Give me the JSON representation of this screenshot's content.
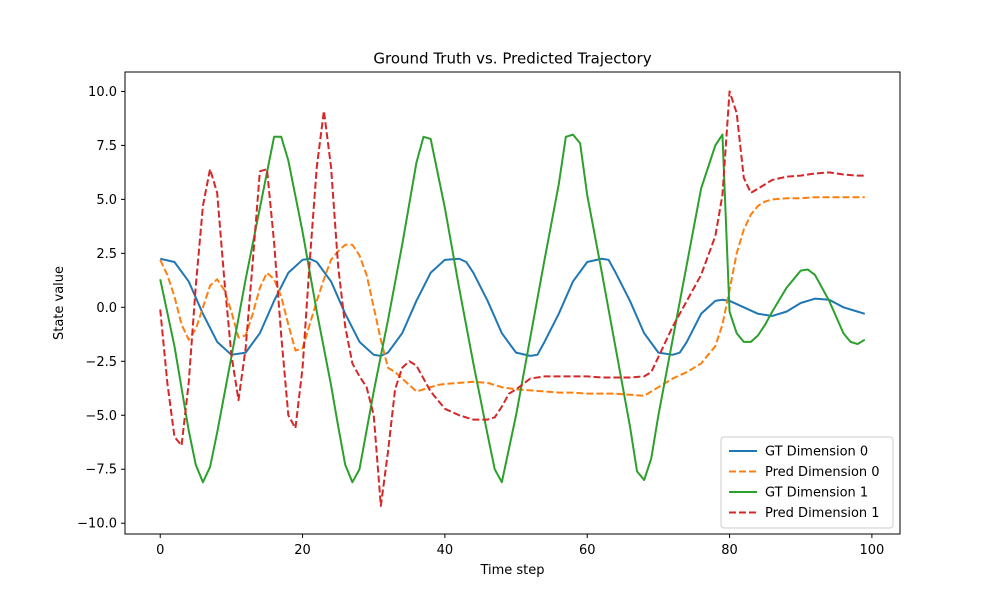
{
  "chart_data": {
    "type": "line",
    "title": "Ground Truth vs. Predicted Trajectory",
    "xlabel": "Time step",
    "ylabel": "State value",
    "xlim": [
      -4.95,
      103.95
    ],
    "ylim": [
      -10.5,
      10.9
    ],
    "xticks": [
      0,
      20,
      40,
      60,
      80,
      100
    ],
    "yticks": [
      -10.0,
      -7.5,
      -5.0,
      -2.5,
      0.0,
      2.5,
      5.0,
      7.5,
      10.0
    ],
    "grid": false,
    "legend_position": "lower-right",
    "series": [
      {
        "name": "GT Dimension 0",
        "color": "#1f77b4",
        "dash": "solid",
        "x": [
          0,
          2,
          4,
          6,
          8,
          10,
          12,
          14,
          16,
          18,
          20,
          21,
          22,
          24,
          26,
          28,
          30,
          31,
          32,
          34,
          36,
          38,
          40,
          42,
          43,
          44,
          46,
          48,
          50,
          52,
          53,
          54,
          56,
          58,
          60,
          62,
          63,
          64,
          66,
          68,
          70,
          72,
          73,
          74,
          76,
          78,
          79,
          80,
          82,
          84,
          86,
          88,
          90,
          92,
          94,
          96,
          98,
          99
        ],
        "y": [
          2.25,
          2.1,
          1.2,
          -0.3,
          -1.6,
          -2.2,
          -2.1,
          -1.2,
          0.3,
          1.6,
          2.2,
          2.25,
          2.1,
          1.2,
          -0.3,
          -1.6,
          -2.2,
          -2.25,
          -2.1,
          -1.2,
          0.3,
          1.6,
          2.2,
          2.25,
          2.1,
          1.6,
          0.3,
          -1.2,
          -2.1,
          -2.25,
          -2.2,
          -1.6,
          -0.3,
          1.2,
          2.1,
          2.25,
          2.2,
          1.6,
          0.3,
          -1.2,
          -2.1,
          -2.2,
          -2.1,
          -1.6,
          -0.3,
          0.3,
          0.35,
          0.3,
          0.0,
          -0.3,
          -0.4,
          -0.2,
          0.2,
          0.4,
          0.35,
          0.0,
          -0.2,
          -0.3
        ]
      },
      {
        "name": "Pred Dimension 0",
        "color": "#ff7f0e",
        "dash": "dashed",
        "x": [
          0,
          1,
          2,
          3,
          4,
          5,
          6,
          7,
          8,
          9,
          10,
          11,
          12,
          13,
          14,
          15,
          16,
          17,
          18,
          19,
          20,
          21,
          22,
          23,
          24,
          25,
          26,
          27,
          28,
          29,
          30,
          31,
          32,
          33,
          34,
          35,
          36,
          37,
          38,
          39,
          40,
          42,
          44,
          46,
          47,
          48,
          50,
          52,
          54,
          56,
          58,
          60,
          62,
          64,
          66,
          68,
          70,
          72,
          74,
          76,
          78,
          79,
          80,
          81,
          82,
          83,
          84,
          85,
          86,
          88,
          90,
          92,
          94,
          96,
          98,
          99
        ],
        "y": [
          2.2,
          1.5,
          0.5,
          -0.8,
          -1.5,
          -1.0,
          0.0,
          1.0,
          1.3,
          0.8,
          -0.2,
          -1.4,
          -1.3,
          -0.3,
          0.9,
          1.6,
          1.3,
          0.5,
          -0.8,
          -2.0,
          -1.9,
          -0.8,
          0.3,
          1.3,
          2.2,
          2.6,
          2.9,
          2.9,
          2.4,
          1.5,
          0.0,
          -1.5,
          -2.8,
          -3.0,
          -3.3,
          -3.6,
          -3.9,
          -3.8,
          -3.7,
          -3.6,
          -3.55,
          -3.5,
          -3.45,
          -3.5,
          -3.6,
          -3.7,
          -3.8,
          -3.85,
          -3.9,
          -3.95,
          -3.95,
          -4.0,
          -4.0,
          -4.0,
          -4.05,
          -4.1,
          -3.7,
          -3.3,
          -3.0,
          -2.6,
          -1.8,
          -0.8,
          0.8,
          2.5,
          3.6,
          4.3,
          4.7,
          4.9,
          5.0,
          5.05,
          5.05,
          5.1,
          5.1,
          5.1,
          5.1,
          5.1
        ]
      },
      {
        "name": "GT Dimension 1",
        "color": "#2ca02c",
        "dash": "solid",
        "x": [
          0,
          2,
          4,
          5,
          6,
          7,
          8,
          10,
          12,
          14,
          16,
          17,
          18,
          20,
          22,
          24,
          25,
          26,
          27,
          28,
          30,
          32,
          34,
          36,
          37,
          38,
          40,
          42,
          44,
          46,
          47,
          48,
          50,
          52,
          54,
          56,
          57,
          58,
          59,
          60,
          62,
          64,
          66,
          67,
          68,
          69,
          70,
          72,
          74,
          76,
          78,
          79,
          80,
          81,
          82,
          83,
          84,
          85,
          86,
          88,
          90,
          91,
          92,
          94,
          96,
          97,
          98,
          99
        ],
        "y": [
          1.3,
          -1.8,
          -5.7,
          -7.3,
          -8.1,
          -7.4,
          -5.8,
          -2.3,
          1.3,
          4.6,
          7.9,
          7.9,
          6.8,
          3.5,
          -0.2,
          -3.6,
          -5.5,
          -7.3,
          -8.1,
          -7.5,
          -3.9,
          -0.6,
          2.9,
          6.7,
          7.9,
          7.8,
          4.6,
          0.9,
          -2.6,
          -5.9,
          -7.5,
          -8.1,
          -5.0,
          -1.4,
          2.2,
          5.7,
          7.9,
          8.0,
          7.6,
          5.2,
          1.7,
          -1.9,
          -5.5,
          -7.6,
          -8.0,
          -7.0,
          -5.0,
          -1.5,
          2.0,
          5.5,
          7.5,
          8.0,
          -0.2,
          -1.2,
          -1.6,
          -1.6,
          -1.3,
          -0.8,
          -0.2,
          0.9,
          1.7,
          1.75,
          1.5,
          0.3,
          -1.2,
          -1.6,
          -1.7,
          -1.5
        ]
      },
      {
        "name": "Pred Dimension 1",
        "color": "#d62728",
        "dash": "dashed",
        "x": [
          0,
          1,
          2,
          3,
          4,
          5,
          6,
          7,
          8,
          9,
          10,
          11,
          12,
          13,
          14,
          15,
          16,
          17,
          18,
          19,
          20,
          21,
          22,
          23,
          24,
          25,
          26,
          27,
          28,
          29,
          30,
          31,
          32,
          33,
          34,
          35,
          36,
          37,
          38,
          40,
          42,
          44,
          46,
          47,
          48,
          49,
          50,
          52,
          54,
          56,
          58,
          60,
          62,
          64,
          66,
          68,
          69,
          70,
          72,
          74,
          76,
          78,
          79,
          80,
          81,
          82,
          83,
          84,
          86,
          88,
          90,
          92,
          94,
          96,
          98,
          99
        ],
        "y": [
          -0.1,
          -3.5,
          -6.0,
          -6.4,
          -3.5,
          1.0,
          4.7,
          6.4,
          5.3,
          1.3,
          -2.2,
          -4.3,
          -1.9,
          2.1,
          6.3,
          6.4,
          3.0,
          -1.3,
          -5.0,
          -5.6,
          -2.8,
          2.1,
          6.5,
          9.1,
          6.5,
          1.9,
          -0.9,
          -2.6,
          -3.2,
          -3.7,
          -5.0,
          -9.2,
          -6.7,
          -3.8,
          -2.8,
          -2.5,
          -2.7,
          -3.3,
          -3.9,
          -4.7,
          -5.0,
          -5.2,
          -5.2,
          -5.1,
          -4.6,
          -4.0,
          -3.8,
          -3.3,
          -3.2,
          -3.2,
          -3.2,
          -3.2,
          -3.25,
          -3.25,
          -3.25,
          -3.2,
          -3.0,
          -2.3,
          -0.9,
          0.3,
          1.5,
          3.3,
          5.2,
          10.0,
          9.0,
          6.0,
          5.3,
          5.5,
          5.9,
          6.05,
          6.1,
          6.2,
          6.25,
          6.15,
          6.1,
          6.1
        ]
      }
    ]
  }
}
